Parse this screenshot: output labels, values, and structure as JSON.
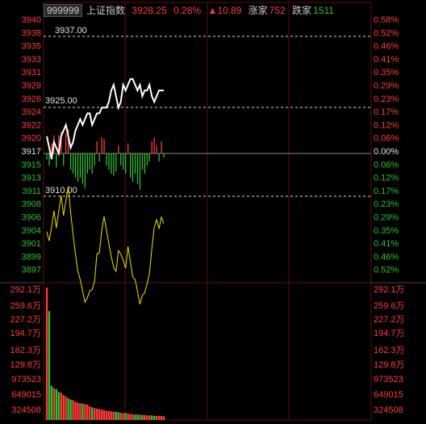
{
  "header": {
    "code": "999999",
    "name": "上证指数",
    "price": "3928.25",
    "pct": "0.28%",
    "change": "▲10.89",
    "up_label": "涨家",
    "up_count": "752",
    "down_label": "跌家",
    "down_count": "1511"
  },
  "colors": {
    "up": "#ff3b3b",
    "down": "#2fbf2f",
    "neutral": "#e0e0e0",
    "grid": "#5a1010",
    "avg_line": "#f0e000",
    "price_line": "#ffffff",
    "dashed": "#e0e0a0"
  },
  "price_axis": {
    "base": 3917,
    "labels": [
      "3940",
      "3938",
      "3935",
      "3933",
      "3931",
      "3929",
      "3926",
      "3924",
      "3922",
      "3920",
      "3917",
      "3915",
      "3913",
      "3911",
      "3908",
      "3906",
      "3904",
      "3901",
      "3899",
      "3897"
    ],
    "pct_labels": [
      "0.58%",
      "0.52%",
      "0.46%",
      "0.41%",
      "0.35%",
      "0.29%",
      "0.23%",
      "0.17%",
      "0.12%",
      "0.06%",
      "0.00%",
      "0.06%",
      "0.12%",
      "0.17%",
      "0.23%",
      "0.29%",
      "0.35%",
      "0.41%",
      "0.46%",
      "0.52%"
    ]
  },
  "annotations": {
    "high": "3937.00",
    "open": "3925.00",
    "low": "3910.00"
  },
  "volume_axis": {
    "labels": [
      "292.1万",
      "259.6万",
      "227.2万",
      "194.7万",
      "162.3万",
      "129.8万",
      "973523",
      "649015",
      "324508"
    ]
  },
  "chart_data": {
    "type": "line",
    "price": [
      3920,
      3918,
      3916,
      3919,
      3918,
      3917,
      3920,
      3921,
      3922,
      3920,
      3918,
      3919,
      3921,
      3922,
      3923,
      3922,
      3923,
      3924,
      3924,
      3922,
      3923,
      3924,
      3924,
      3925,
      3925,
      3925,
      3926,
      3928,
      3929,
      3927,
      3925,
      3926,
      3929,
      3928,
      3929,
      3930,
      3930,
      3929,
      3928,
      3929,
      3927,
      3928,
      3928,
      3929,
      3927,
      3926,
      3927,
      3928,
      3928,
      3928
    ],
    "net_flow": [
      -0.15,
      -0.3,
      0.25,
      0.45,
      -0.35,
      0.45,
      0.55,
      -0.3,
      0.5,
      0.6,
      -0.4,
      -0.5,
      -0.6,
      -0.7,
      -0.6,
      -0.75,
      -0.85,
      -0.5,
      -0.4,
      -0.5,
      -0.3,
      0.3,
      -0.2,
      0.4,
      0.35,
      -0.3,
      -0.4,
      -0.5,
      -0.55,
      -0.45,
      0.2,
      -0.3,
      -0.4,
      -0.5,
      0.25,
      -0.6,
      -0.7,
      -0.5,
      -0.75,
      -0.9,
      -0.4,
      -0.5,
      -0.3,
      -0.2,
      0.3,
      0.4,
      0.2,
      -0.2,
      0.3,
      -0.1
    ],
    "volume": [
      292,
      240,
      75,
      70,
      68,
      62,
      60,
      55,
      52,
      48,
      45,
      44,
      40,
      38,
      37,
      36,
      35,
      34,
      30,
      28,
      26,
      25,
      24,
      23,
      22,
      20,
      20,
      19,
      18,
      18,
      17,
      16,
      15,
      16,
      14,
      13,
      13,
      12,
      12,
      12,
      11,
      11,
      10,
      10,
      10,
      9,
      9,
      9,
      9,
      8
    ]
  }
}
